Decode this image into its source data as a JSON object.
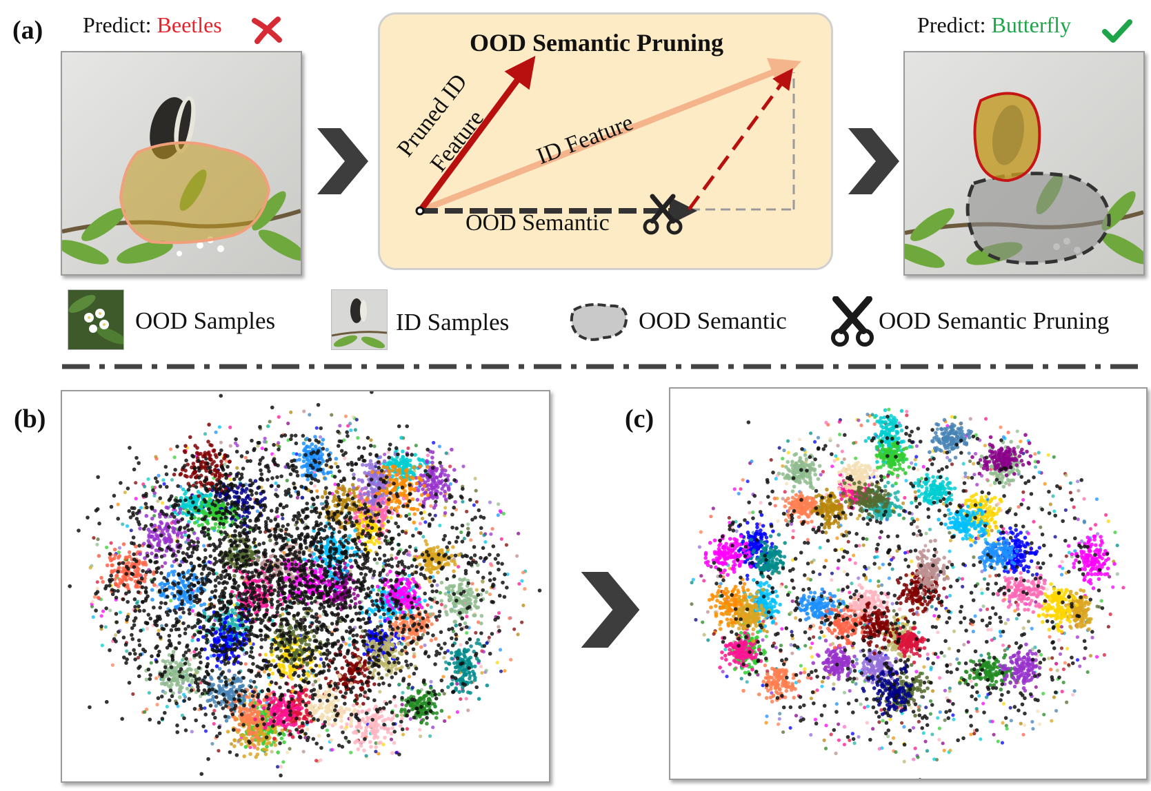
{
  "panel_labels": {
    "a": "(a)",
    "b": "(b)",
    "c": "(c)"
  },
  "left_prediction": {
    "prefix": "Predict:",
    "label": "Beetles",
    "color": "#e5232b",
    "mark": "cross-icon"
  },
  "right_prediction": {
    "prefix": "Predict:",
    "label": "Butterfly",
    "color": "#1ea54a",
    "mark": "check-icon"
  },
  "center_box": {
    "title": "OOD Semantic Pruning",
    "pruned_id_feature_line1": "Pruned ID",
    "pruned_id_feature_line2": "Feature",
    "id_feature": "ID Feature",
    "ood_semantic": "OOD Semantic",
    "background_color": "#fdebc6",
    "pruned_color": "#b80f0f",
    "id_feature_color": "#f4b48c"
  },
  "legend": [
    {
      "label": "OOD Samples",
      "icon": "ood-sample-thumbnail"
    },
    {
      "label": "ID Samples",
      "icon": "id-sample-thumbnail"
    },
    {
      "label": "OOD Semantic",
      "icon": "dashed-blob-icon"
    },
    {
      "label": "OOD Semantic Pruning",
      "icon": "scissors-icon"
    }
  ],
  "cluster_palette": [
    "#ff7f50",
    "#8fbc8f",
    "#00ced1",
    "#ffd700",
    "#9932cc",
    "#ff1493",
    "#00bfff",
    "#800000",
    "#0000ff",
    "#32cd32",
    "#ff00ff",
    "#daa520",
    "#556b2f",
    "#1e90ff",
    "#ff6347",
    "#20b2aa",
    "#b8860b",
    "#8b008b",
    "#ffb6c1",
    "#bc8f8f",
    "#4682b4",
    "#228b22",
    "#ff69b4",
    "#f5deb3",
    "#008b8b",
    "#bdb76b",
    "#9370db",
    "#ff8c00",
    "#00008b",
    "#dc143c"
  ]
}
